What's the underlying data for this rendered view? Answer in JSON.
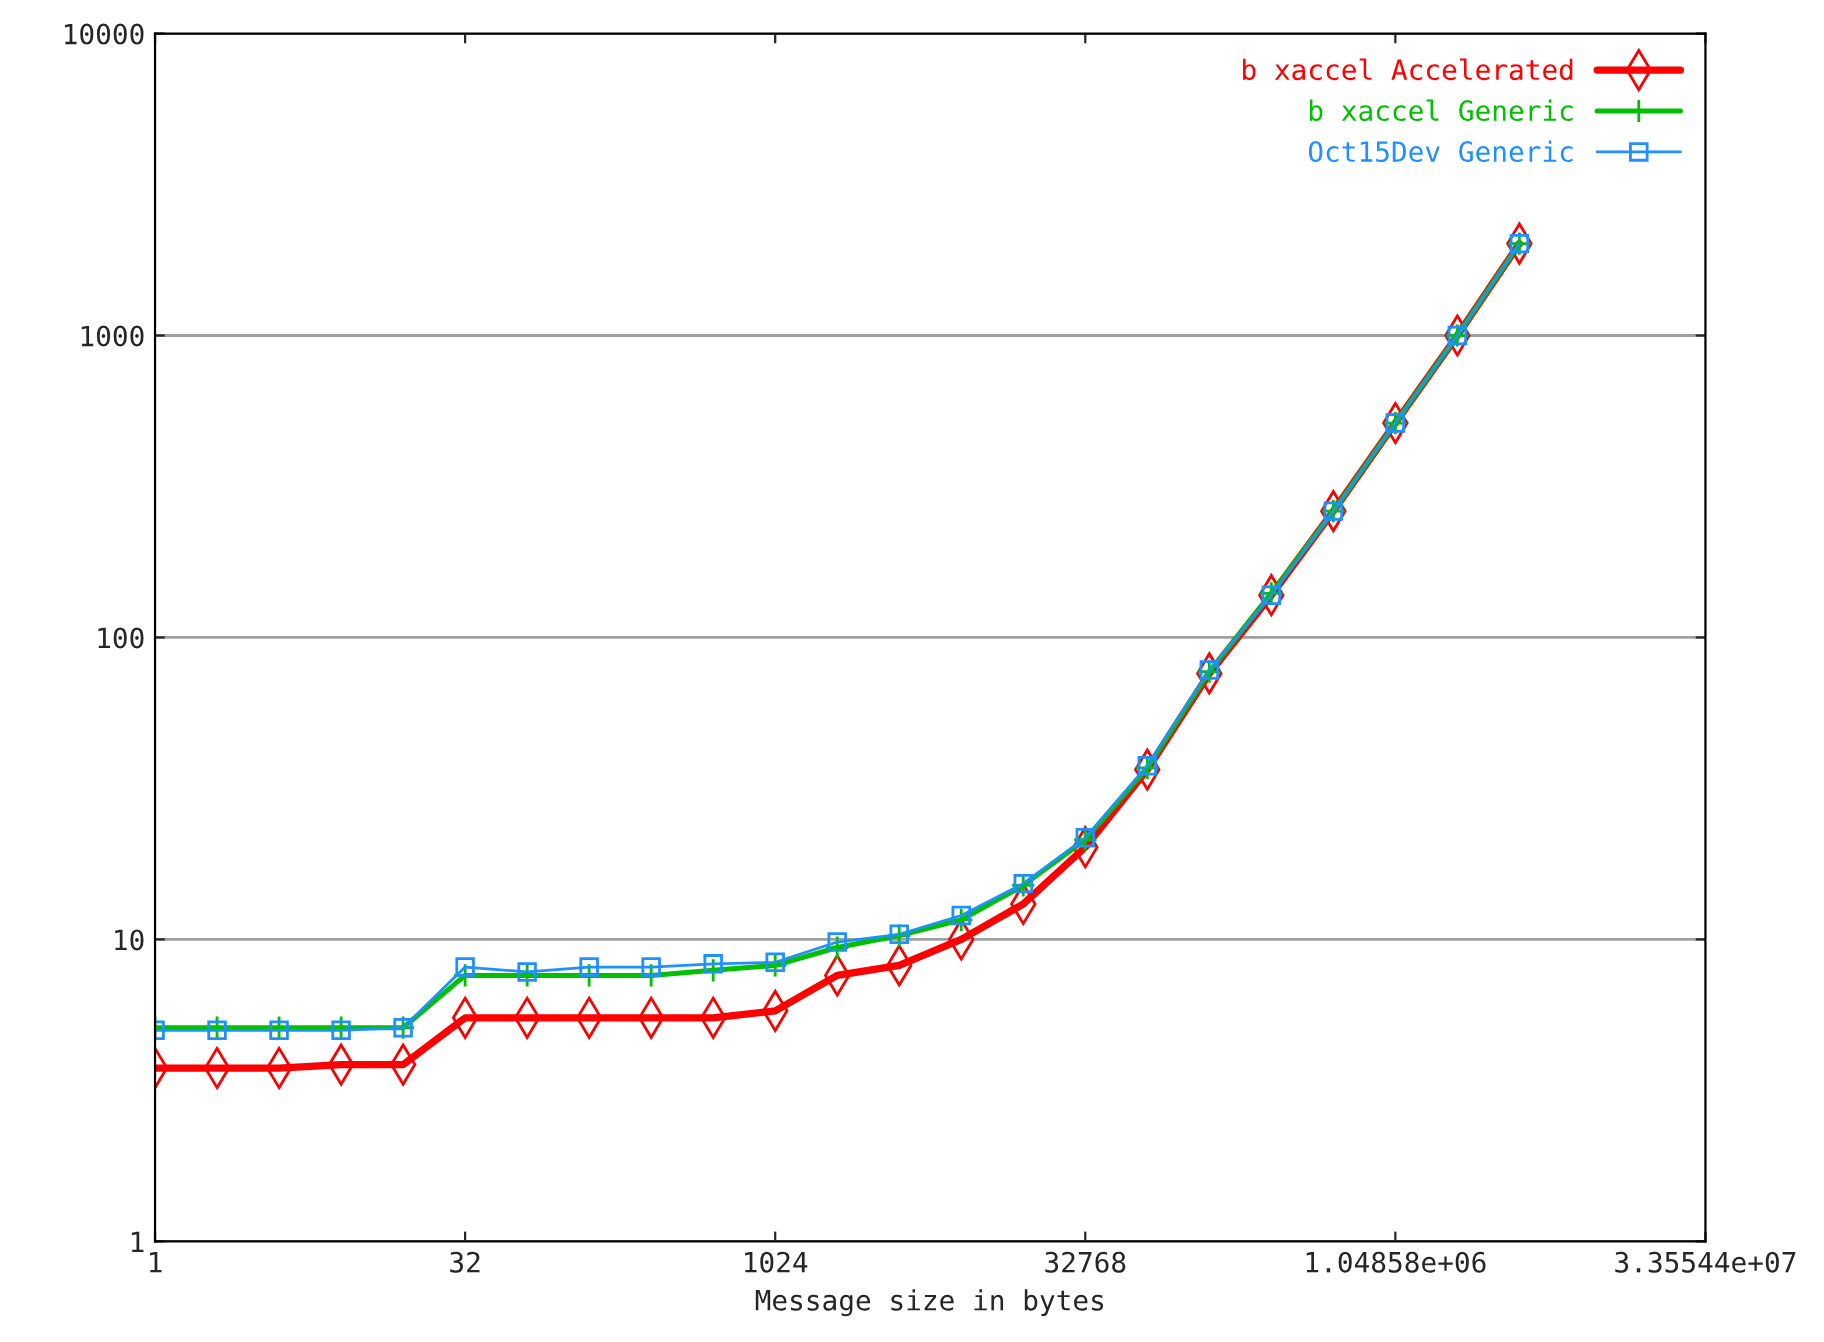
{
  "chart_data": {
    "type": "line",
    "xlabel": "Message size in bytes",
    "x": [
      1,
      2,
      4,
      8,
      16,
      32,
      64,
      128,
      256,
      512,
      1024,
      2048,
      4096,
      8192,
      16384,
      32768,
      65536,
      131072,
      262144,
      524288,
      1048576,
      2097152,
      4194304
    ],
    "series": [
      {
        "name": "b xaccel Accelerated",
        "color": "#ff0000",
        "marker": "diamond",
        "values": [
          3.75,
          3.75,
          3.75,
          3.85,
          3.85,
          5.5,
          5.5,
          5.5,
          5.5,
          5.5,
          5.8,
          7.6,
          8.2,
          10,
          13.1,
          20.2,
          36.5,
          76,
          138,
          262,
          513,
          1000,
          2015
        ]
      },
      {
        "name": "b xaccel Generic",
        "color": "#00c000",
        "marker": "cross",
        "values": [
          5.1,
          5.1,
          5.1,
          5.1,
          5.1,
          7.6,
          7.6,
          7.6,
          7.6,
          7.9,
          8.2,
          9.4,
          10.3,
          11.6,
          15.1,
          21.4,
          37,
          77,
          140,
          262,
          513,
          1000,
          2015
        ]
      },
      {
        "name": "Oct15Dev Generic",
        "color": "#1e90ff",
        "marker": "square",
        "values": [
          5.0,
          5.0,
          5.0,
          5.0,
          5.1,
          8.1,
          7.8,
          8.1,
          8.1,
          8.3,
          8.4,
          9.8,
          10.4,
          12,
          15.3,
          21.7,
          37.6,
          78,
          138,
          262,
          513,
          1000,
          2015
        ]
      }
    ],
    "log": "xy",
    "xlim": [
      1,
      33554432
    ],
    "xticks": [
      1,
      32,
      1024,
      32768,
      {
        "value": 1048576,
        "label": "1.04858e+06"
      },
      {
        "value": 33554432,
        "label": "3.35544e+07"
      }
    ],
    "ylim": [
      1,
      10000
    ],
    "yticks": [
      1,
      10,
      100,
      1000,
      10000
    ],
    "grid": "y",
    "legend": "top right"
  }
}
